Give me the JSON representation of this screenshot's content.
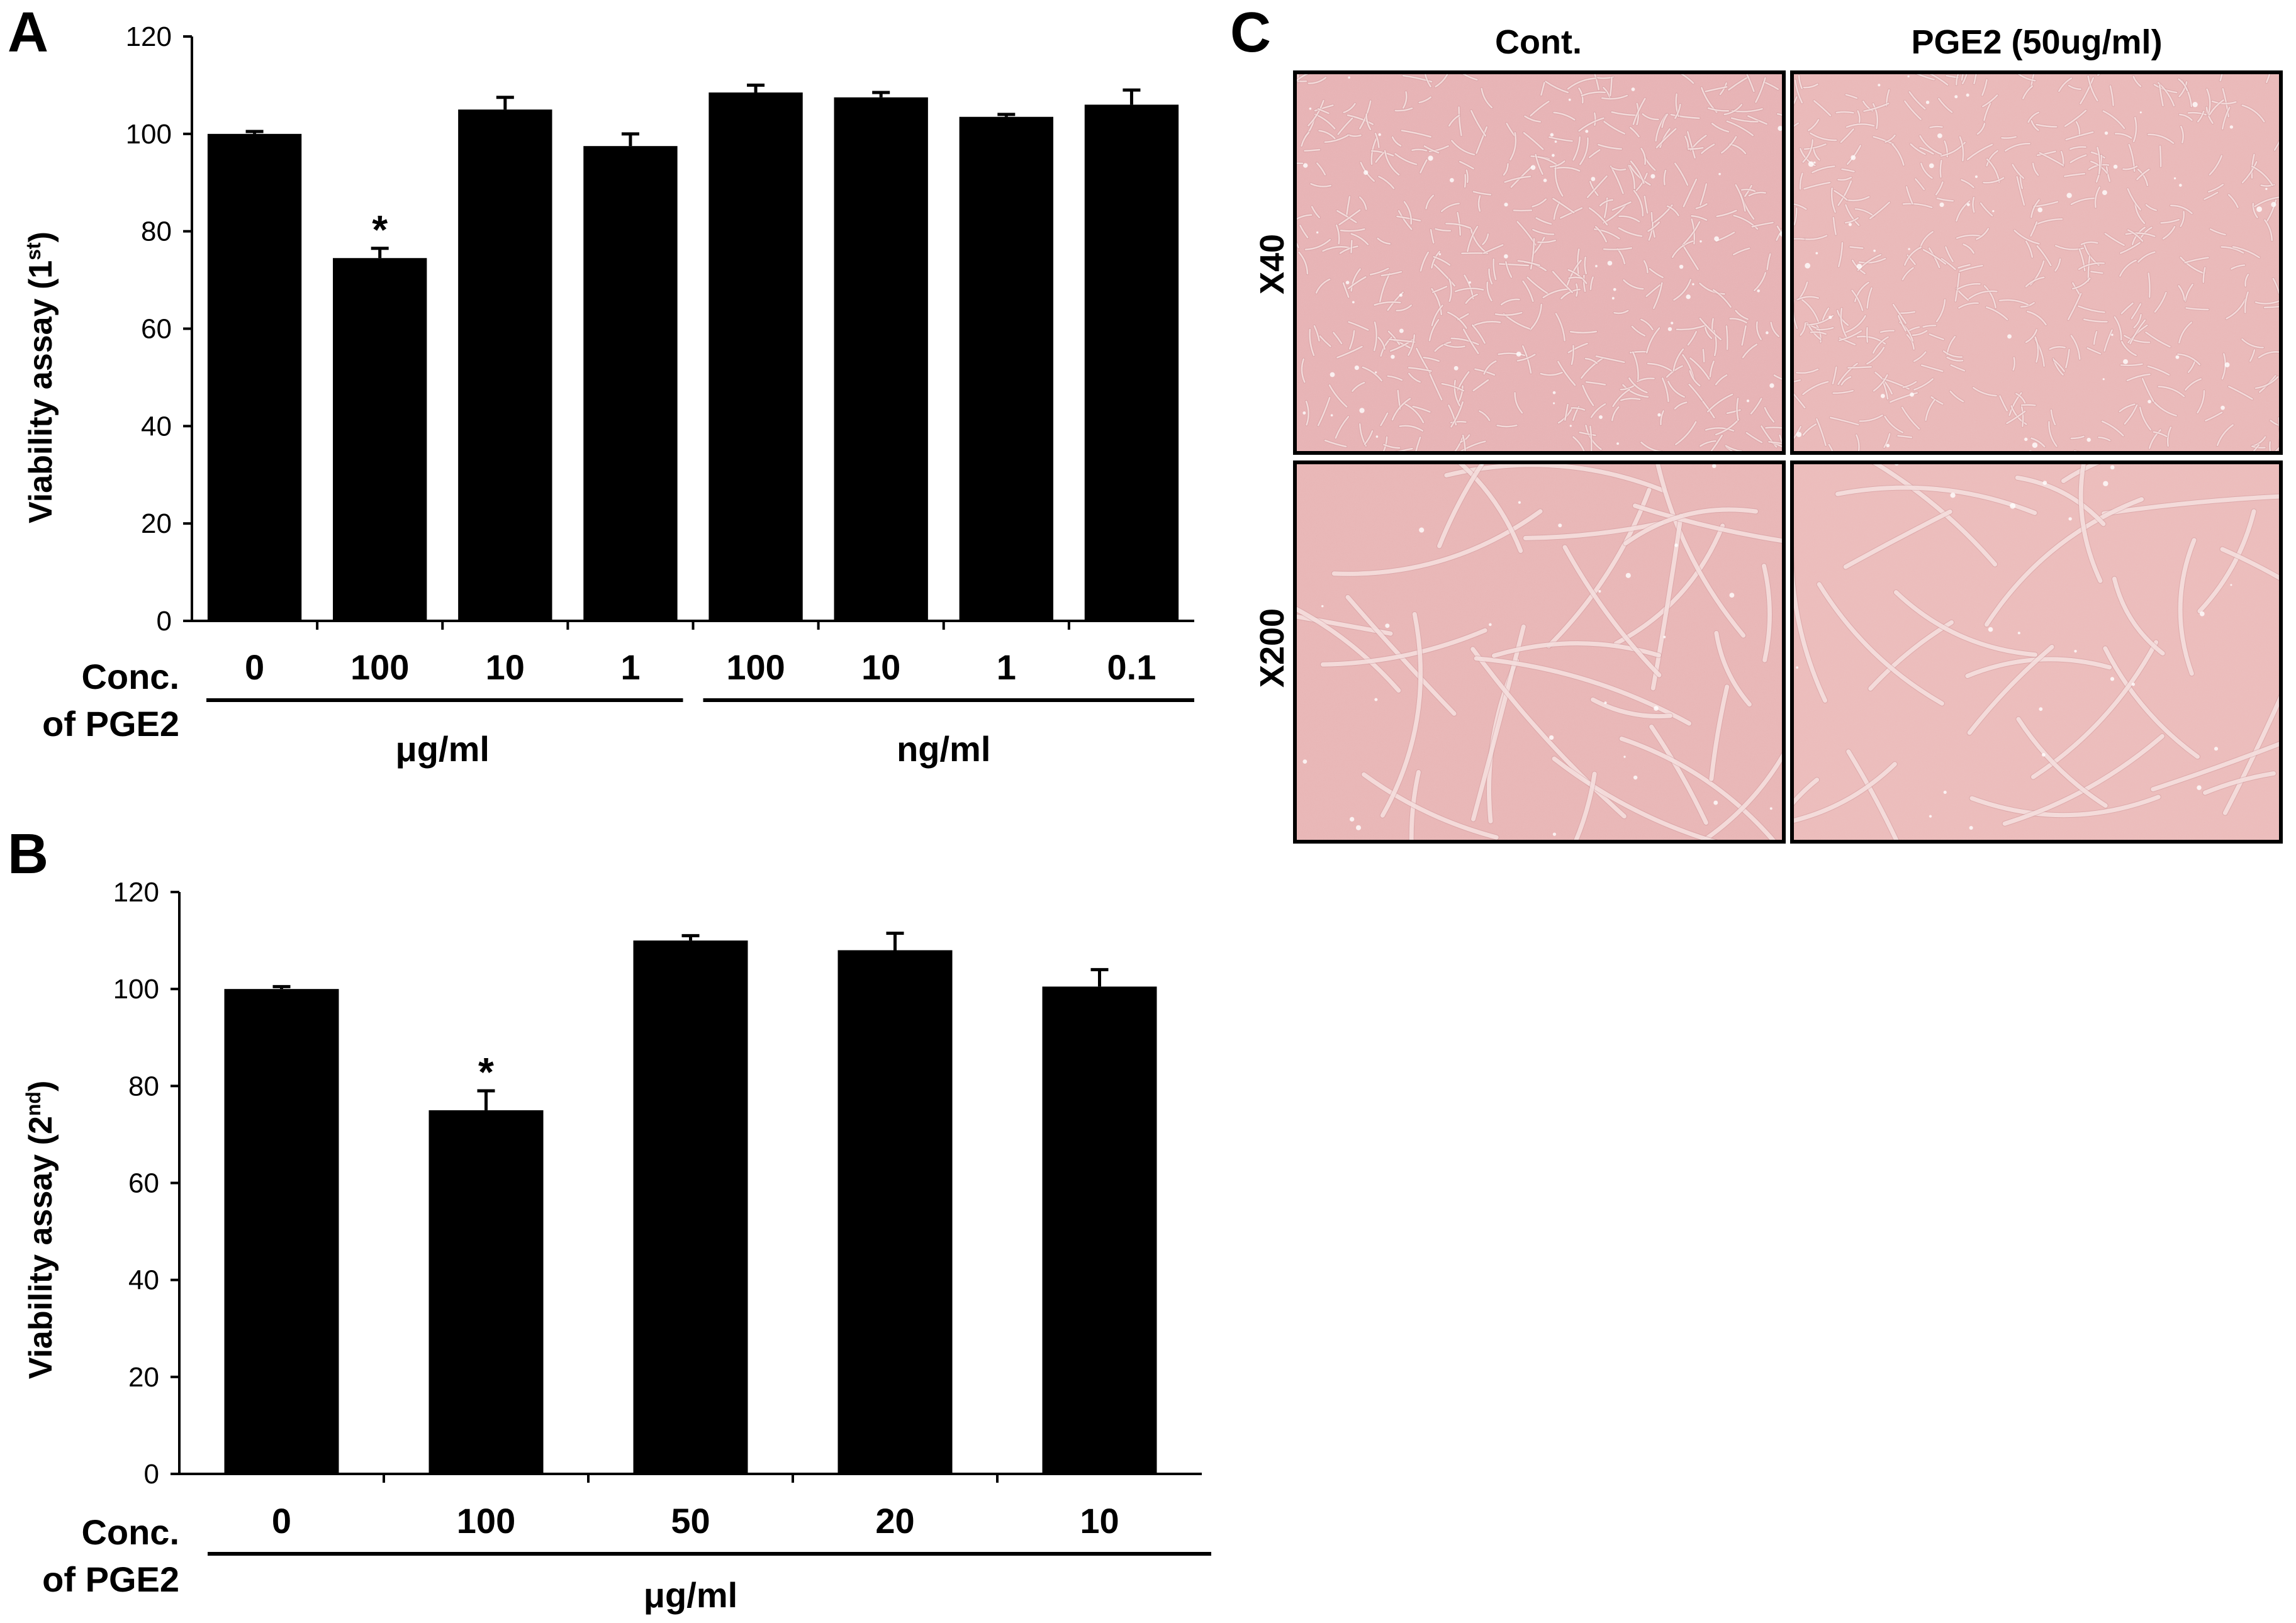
{
  "panels": {
    "a": "A",
    "b": "B",
    "c": "C"
  },
  "colors": {
    "bar": "#000000",
    "micrograph_base": "#e8b2b3",
    "micrograph_cell": "#f7e2e0",
    "micrograph_dark": "#c88c91"
  },
  "chart_data": [
    {
      "type": "bar",
      "panel": "A",
      "ylabel": "Viability assay (1st)",
      "ylabel_main": "Viability assay (1",
      "ylabel_sup": "st",
      "ylabel_end": ")",
      "ylim": [
        0,
        120
      ],
      "yticks": [
        "0",
        "20",
        "40",
        "60",
        "80",
        "100",
        "120"
      ],
      "row_label": [
        "Conc.",
        "of PGE2"
      ],
      "categories": [
        "0",
        "100",
        "10",
        "1",
        "100",
        "10",
        "1",
        "0.1"
      ],
      "values": [
        100,
        74.5,
        105,
        97.5,
        108.5,
        107.5,
        103.5,
        106
      ],
      "errors": [
        0.5,
        2.0,
        2.5,
        2.5,
        1.5,
        1.0,
        0.5,
        3.0
      ],
      "significance": [
        "",
        "*",
        "",
        "",
        "",
        "",
        "",
        ""
      ],
      "unit_groups": [
        {
          "label": "μg/ml",
          "from": 0,
          "to": 3
        },
        {
          "label": "ng/ml",
          "from": 4,
          "to": 7
        }
      ],
      "grid": false
    },
    {
      "type": "bar",
      "panel": "B",
      "ylabel": "Viability assay (2nd)",
      "ylabel_main": "Viability assay (2",
      "ylabel_sup": "nd",
      "ylabel_end": ")",
      "ylim": [
        0,
        120
      ],
      "yticks": [
        "0",
        "20",
        "40",
        "60",
        "80",
        "100",
        "120"
      ],
      "row_label": [
        "Conc.",
        "of PGE2"
      ],
      "categories": [
        "0",
        "100",
        "50",
        "20",
        "10"
      ],
      "values": [
        100,
        75,
        110,
        108,
        100.5
      ],
      "errors": [
        0.5,
        4.0,
        1.0,
        3.5,
        3.5
      ],
      "significance": [
        "",
        "*",
        "",
        "",
        ""
      ],
      "unit_groups": [
        {
          "label": "μg/ml",
          "from": 0,
          "to": 4
        }
      ],
      "grid": false
    }
  ],
  "micrographs": {
    "columns": [
      "Cont.",
      "PGE2 (50ug/ml)"
    ],
    "rows": [
      "X40",
      "X200"
    ]
  }
}
